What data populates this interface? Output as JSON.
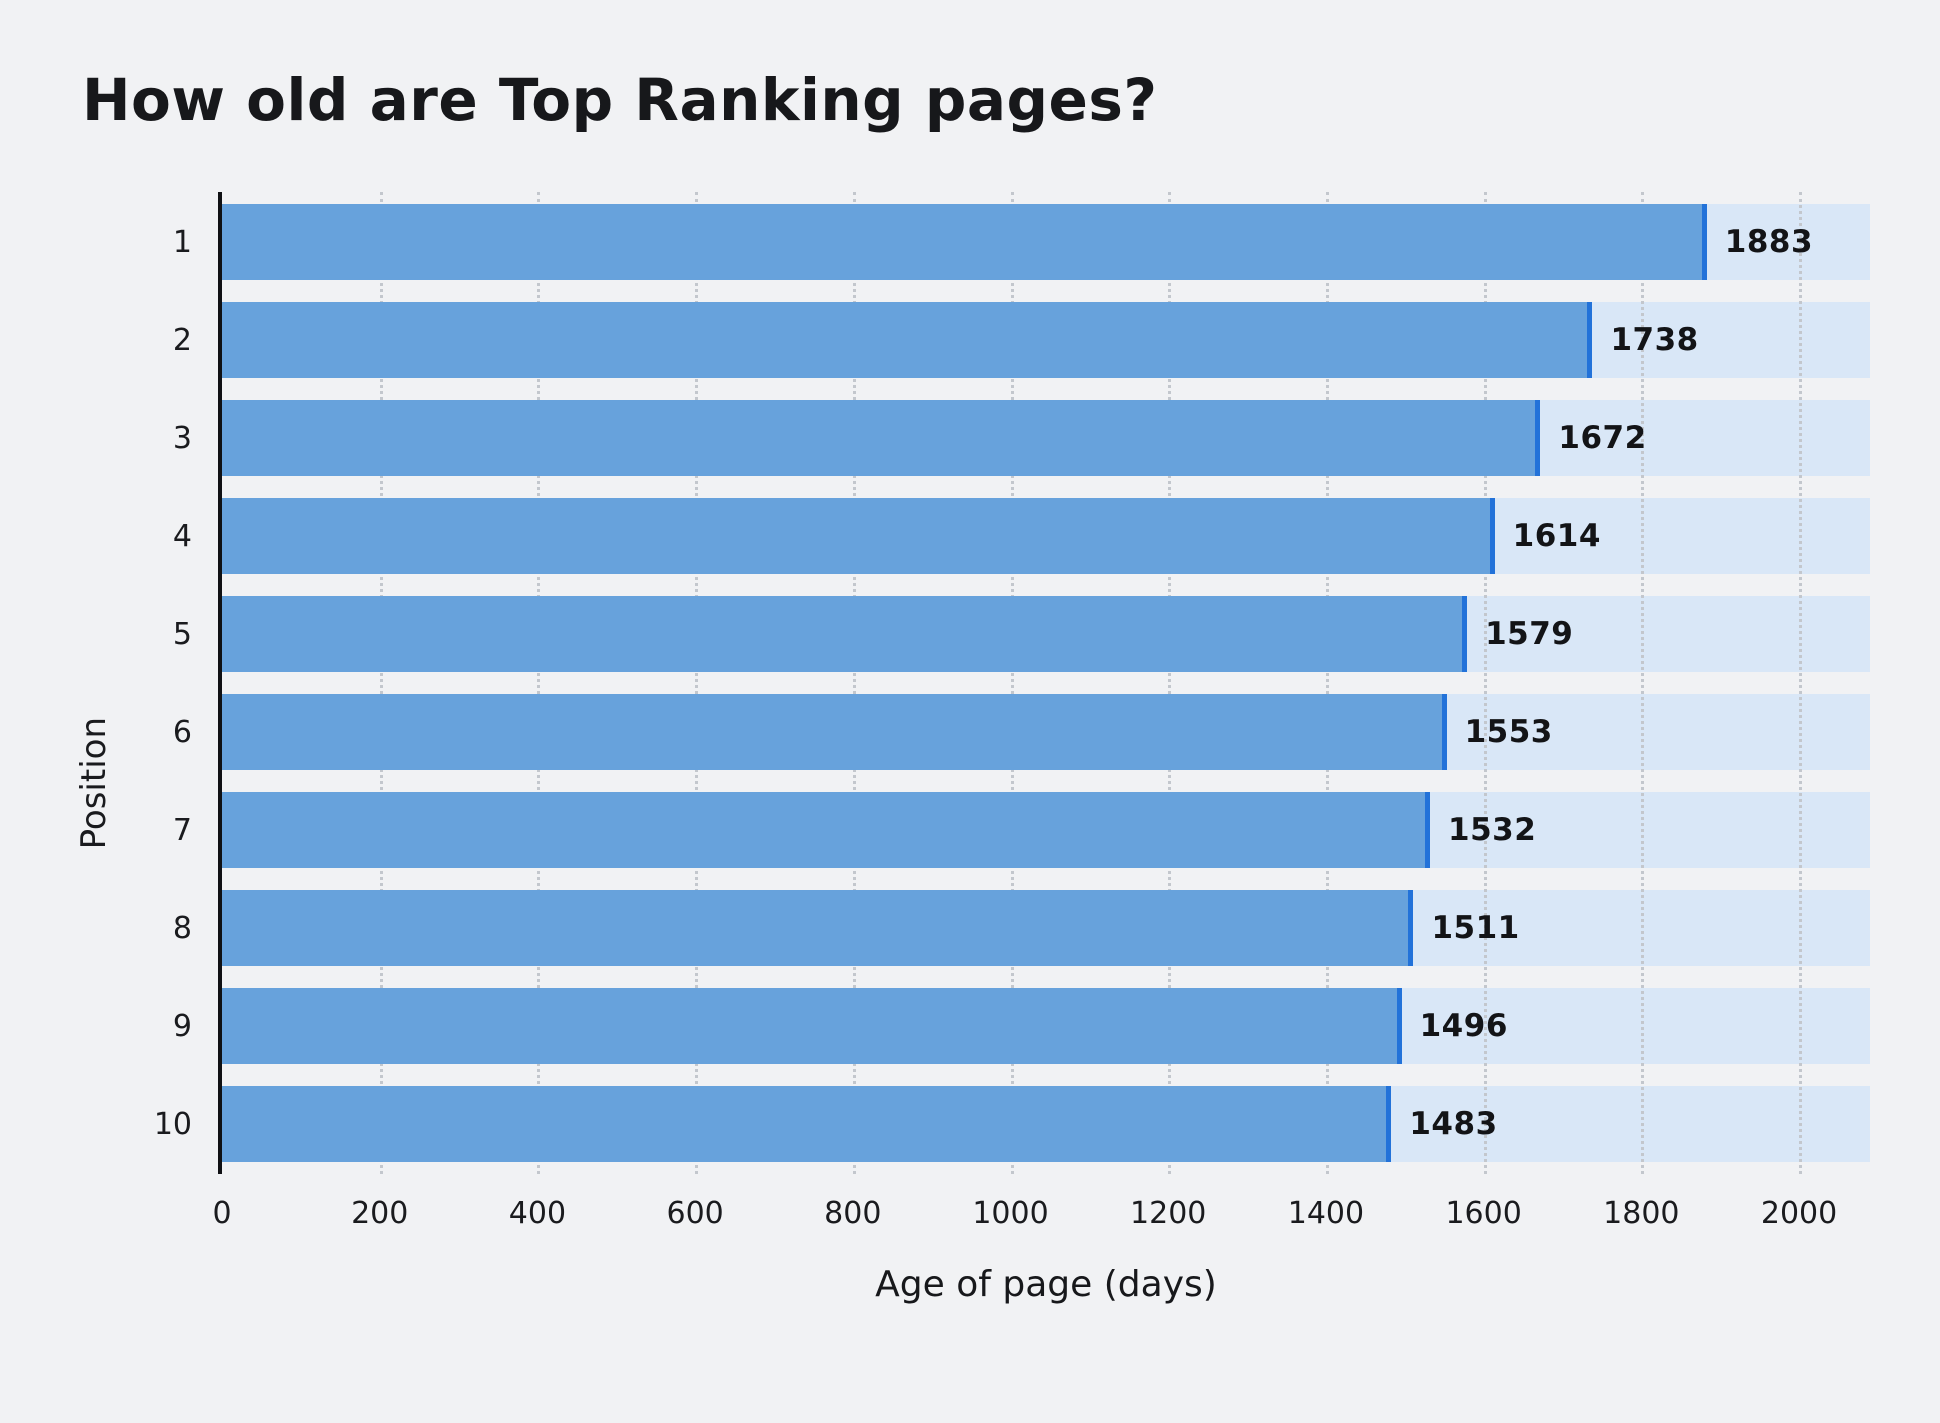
{
  "page": {
    "background": "#f1f2f4"
  },
  "chart_data": {
    "type": "bar",
    "orientation": "horizontal",
    "title": "How old are Top Ranking pages?",
    "xlabel": "Age of page (days)",
    "ylabel": "Position",
    "categories": [
      "1",
      "2",
      "3",
      "4",
      "5",
      "6",
      "7",
      "8",
      "9",
      "10"
    ],
    "values": [
      1883,
      1738,
      1672,
      1614,
      1579,
      1553,
      1532,
      1511,
      1496,
      1483
    ],
    "value_labels": [
      "1883",
      "1738",
      "1672",
      "1614",
      "1579",
      "1553",
      "1532",
      "1511",
      "1496",
      "1483"
    ],
    "xlim": [
      0,
      2090
    ],
    "xticks": [
      0,
      200,
      400,
      600,
      800,
      1000,
      1200,
      1400,
      1600,
      1800,
      2000
    ],
    "grid": "dotted-vertical",
    "legend": "none",
    "colors": {
      "bar": "#67a2dc",
      "bar_edge": "#2272d9",
      "track": "#d9e7f7",
      "gridline": "#c3c7cd",
      "text": "#141619",
      "background": "#f1f2f4"
    }
  }
}
